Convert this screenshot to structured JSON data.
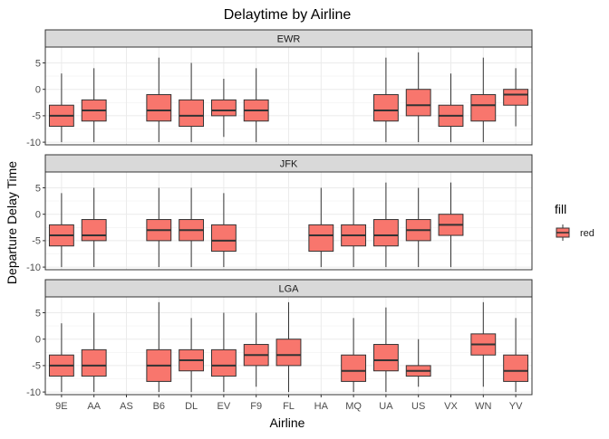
{
  "chart_data": {
    "type": "boxplot",
    "title": "Delaytime by Airline",
    "xlabel": "Airline",
    "ylabel": "Departure Delay Time",
    "categories": [
      "9E",
      "AA",
      "AS",
      "B6",
      "DL",
      "EV",
      "F9",
      "FL",
      "HA",
      "MQ",
      "UA",
      "US",
      "VX",
      "WN",
      "YV"
    ],
    "ylim": [
      -10.5,
      8
    ],
    "yticks": [
      5,
      0,
      -5,
      -10
    ],
    "ytick_labels": [
      "5",
      "0",
      "-5",
      "-10"
    ],
    "grid": true,
    "fill_color": "#F8766D",
    "legend": {
      "title": "fill",
      "entries": [
        "red"
      ],
      "placement": "right"
    },
    "panels": [
      {
        "name": "EWR",
        "boxes": [
          {
            "cat": "9E",
            "min": -10,
            "q1": -7,
            "median": -5,
            "q3": -3,
            "max": 3
          },
          {
            "cat": "AA",
            "min": -10,
            "q1": -6,
            "median": -4,
            "q3": -2,
            "max": 4
          },
          {
            "cat": "B6",
            "min": -10,
            "q1": -6,
            "median": -4,
            "q3": -1,
            "max": 6
          },
          {
            "cat": "DL",
            "min": -10,
            "q1": -7,
            "median": -5,
            "q3": -2,
            "max": 5
          },
          {
            "cat": "EV",
            "min": -9,
            "q1": -5,
            "median": -4,
            "q3": -2,
            "max": 2
          },
          {
            "cat": "F9",
            "min": -10,
            "q1": -6,
            "median": -4,
            "q3": -2,
            "max": 4
          },
          {
            "cat": "UA",
            "min": -10,
            "q1": -6,
            "median": -4,
            "q3": -1,
            "max": 6
          },
          {
            "cat": "US",
            "min": -10,
            "q1": -5,
            "median": -3,
            "q3": 0,
            "max": 7
          },
          {
            "cat": "VX",
            "min": -10,
            "q1": -7,
            "median": -5,
            "q3": -3,
            "max": 3
          },
          {
            "cat": "WN",
            "min": -10,
            "q1": -6,
            "median": -3,
            "q3": -1,
            "max": 6
          },
          {
            "cat": "YV",
            "min": -7,
            "q1": -3,
            "median": -1,
            "q3": 0,
            "max": 4
          }
        ]
      },
      {
        "name": "JFK",
        "boxes": [
          {
            "cat": "9E",
            "min": -10,
            "q1": -6,
            "median": -4,
            "q3": -2,
            "max": 4
          },
          {
            "cat": "AA",
            "min": -10,
            "q1": -5,
            "median": -4,
            "q3": -1,
            "max": 5
          },
          {
            "cat": "B6",
            "min": -10,
            "q1": -5,
            "median": -3,
            "q3": -1,
            "max": 5
          },
          {
            "cat": "DL",
            "min": -10,
            "q1": -5,
            "median": -3,
            "q3": -1,
            "max": 5
          },
          {
            "cat": "EV",
            "min": -10,
            "q1": -7,
            "median": -5,
            "q3": -2,
            "max": 4
          },
          {
            "cat": "HA",
            "min": -10,
            "q1": -7,
            "median": -4,
            "q3": -2,
            "max": 5
          },
          {
            "cat": "MQ",
            "min": -10,
            "q1": -6,
            "median": -4,
            "q3": -2,
            "max": 5
          },
          {
            "cat": "UA",
            "min": -10,
            "q1": -6,
            "median": -4,
            "q3": -1,
            "max": 6
          },
          {
            "cat": "US",
            "min": -10,
            "q1": -5,
            "median": -3,
            "q3": -1,
            "max": 5
          },
          {
            "cat": "VX",
            "min": -10,
            "q1": -4,
            "median": -2,
            "q3": 0,
            "max": 6
          }
        ]
      },
      {
        "name": "LGA",
        "boxes": [
          {
            "cat": "9E",
            "min": -10,
            "q1": -7,
            "median": -5,
            "q3": -3,
            "max": 3
          },
          {
            "cat": "AA",
            "min": -10,
            "q1": -7,
            "median": -5,
            "q3": -2,
            "max": 5
          },
          {
            "cat": "B6",
            "min": -10,
            "q1": -8,
            "median": -5,
            "q3": -2,
            "max": 7
          },
          {
            "cat": "DL",
            "min": -10,
            "q1": -6,
            "median": -4,
            "q3": -2,
            "max": 4
          },
          {
            "cat": "EV",
            "min": -10,
            "q1": -7,
            "median": -5,
            "q3": -2,
            "max": 5
          },
          {
            "cat": "F9",
            "min": -9,
            "q1": -5,
            "median": -3,
            "q3": -1,
            "max": 5
          },
          {
            "cat": "FL",
            "min": -10,
            "q1": -5,
            "median": -3,
            "q3": 0,
            "max": 7
          },
          {
            "cat": "MQ",
            "min": -10,
            "q1": -8,
            "median": -6,
            "q3": -3,
            "max": 4
          },
          {
            "cat": "UA",
            "min": -10,
            "q1": -6,
            "median": -4,
            "q3": -1,
            "max": 6
          },
          {
            "cat": "US",
            "min": -9,
            "q1": -7,
            "median": -6,
            "q3": -5,
            "max": 0
          },
          {
            "cat": "WN",
            "min": -9,
            "q1": -3,
            "median": -1,
            "q3": 1,
            "max": 7
          },
          {
            "cat": "YV",
            "min": -10,
            "q1": -8,
            "median": -6,
            "q3": -3,
            "max": 4
          }
        ]
      }
    ]
  }
}
